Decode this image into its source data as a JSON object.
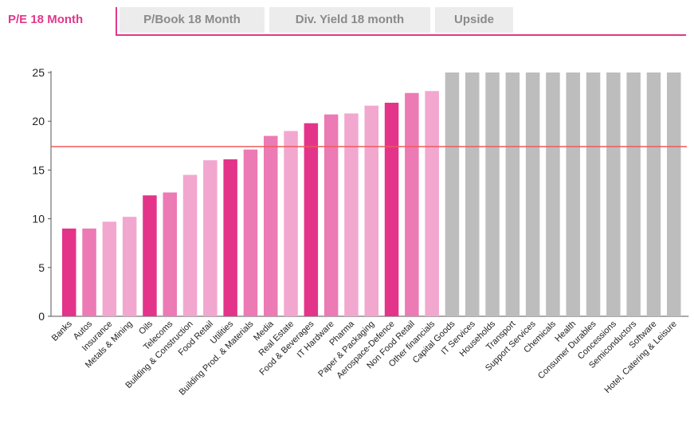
{
  "tabs": [
    {
      "label": "P/E 18 Month",
      "active": true
    },
    {
      "label": "P/Book 18 Month",
      "active": false
    },
    {
      "label": "Div. Yield 18 month",
      "active": false
    },
    {
      "label": "Upside",
      "active": false
    }
  ],
  "colors": {
    "accent": "#e0388a",
    "reference_line": "#f05a5a",
    "capped_bar": "#bdbdbd",
    "shades": [
      "#e3348a",
      "#ec7ab4",
      "#f2a7cf"
    ]
  },
  "chart_data": {
    "type": "bar",
    "title": "",
    "xlabel": "",
    "ylabel": "",
    "ylim": [
      0,
      25
    ],
    "yticks": [
      0,
      5,
      10,
      15,
      20,
      25
    ],
    "reference_value": 17.4,
    "capped_value": 25,
    "categories": [
      "Banks",
      "Autos",
      "Insurance",
      "Metals & Mining",
      "Oils",
      "Telecoms",
      "Building & Construction",
      "Food Retail",
      "Utilities",
      "Building Prod. & Materials",
      "Media",
      "Real Estate",
      "Food & Beverages",
      "IT Hardware",
      "Pharma",
      "Paper & Packaging",
      "Aerospace-Defence",
      "Non Food Retail",
      "Other financials",
      "Capital Goods",
      "IT Services",
      "Households",
      "Transport",
      "Support Services",
      "Chemicals",
      "Health",
      "Consumer Durables",
      "Concessions",
      "Semiconductors",
      "Software",
      "Hotel, Catering & Leisure"
    ],
    "values": [
      9.0,
      9.0,
      9.7,
      10.2,
      12.4,
      12.7,
      14.5,
      16.0,
      16.1,
      17.1,
      18.5,
      19.0,
      19.8,
      20.7,
      20.8,
      21.6,
      21.9,
      22.9,
      23.1,
      25,
      25,
      25,
      25,
      25,
      25,
      25,
      25,
      25,
      25,
      25,
      25
    ],
    "shade": [
      0,
      1,
      2,
      2,
      0,
      1,
      2,
      2,
      0,
      1,
      1,
      2,
      0,
      1,
      2,
      2,
      0,
      1,
      2,
      null,
      null,
      null,
      null,
      null,
      null,
      null,
      null,
      null,
      null,
      null,
      null
    ]
  }
}
